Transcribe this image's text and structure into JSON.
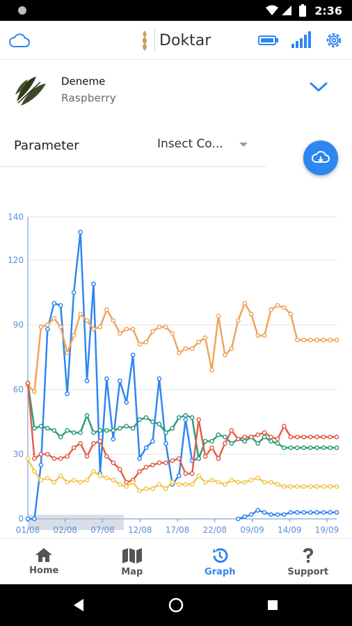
{
  "status_bar": {
    "time": "2:36"
  },
  "app": {
    "brand": "Doktar"
  },
  "field": {
    "name": "Deneme",
    "crop": "Raspberry"
  },
  "parameter": {
    "label": "Parameter",
    "selected": "Insect Co..."
  },
  "colors": {
    "accent": "#2e86f0",
    "blue": "#2e86f0",
    "orange": "#f0a35a",
    "green": "#2e9b7a",
    "red": "#e0604a",
    "yellow": "#f0c850"
  },
  "chart_data": {
    "type": "line",
    "x_ticks": [
      "01/08",
      "02/08",
      "07/08",
      "12/08",
      "17/08",
      "22/08",
      "09/09",
      "14/09",
      "19/09"
    ],
    "y_ticks": [
      "0",
      "30",
      "60",
      "90",
      "120",
      "140"
    ],
    "ylim": [
      0,
      140
    ],
    "grid": true,
    "series": [
      {
        "color": "blue",
        "values": [
          0,
          0,
          25,
          88,
          100,
          99,
          58,
          105,
          133,
          64,
          109,
          21,
          65,
          37,
          64,
          54,
          76,
          28,
          33,
          36,
          65,
          35,
          16,
          20,
          46,
          27,
          28,
          null,
          null,
          null,
          null,
          null,
          0,
          1,
          2,
          4,
          3,
          2,
          2,
          2,
          3,
          3,
          3,
          3,
          3,
          3,
          3,
          3
        ]
      },
      {
        "color": "orange",
        "values": [
          62,
          59,
          89,
          90,
          93,
          89,
          77,
          85,
          95,
          92,
          88,
          89,
          97,
          92,
          86,
          88,
          88,
          81,
          82,
          87,
          89,
          89,
          86,
          77,
          79,
          79,
          82,
          84,
          69,
          94,
          76,
          79,
          92,
          100,
          95,
          85,
          85,
          97,
          99,
          98,
          95,
          83,
          83,
          83,
          83,
          83,
          83,
          83
        ]
      },
      {
        "color": "green",
        "values": [
          63,
          42,
          43,
          42,
          41,
          38,
          41,
          40,
          40,
          48,
          40,
          41,
          41,
          41,
          42,
          43,
          42,
          46,
          47,
          45,
          44,
          40,
          42,
          47,
          48,
          47,
          28,
          36,
          36,
          39,
          38,
          35,
          37,
          36,
          38,
          35,
          38,
          36,
          35,
          33,
          33,
          33,
          33,
          33,
          33,
          33,
          33,
          33
        ]
      },
      {
        "color": "red",
        "values": [
          63,
          28,
          30,
          30,
          28,
          28,
          29,
          33,
          35,
          29,
          35,
          36,
          29,
          26,
          23,
          17,
          18,
          22,
          24,
          25,
          26,
          26,
          27,
          28,
          21,
          21,
          46,
          29,
          33,
          28,
          35,
          41,
          37,
          38,
          38,
          39,
          40,
          38,
          37,
          43,
          38,
          38,
          38,
          38,
          38,
          38,
          38,
          38
        ]
      },
      {
        "color": "yellow",
        "values": [
          28,
          22,
          18,
          19,
          17,
          20,
          17,
          18,
          17,
          18,
          22,
          20,
          19,
          18,
          16,
          15,
          17,
          13,
          14,
          14,
          16,
          14,
          17,
          16,
          16,
          16,
          20,
          17,
          18,
          17,
          16,
          18,
          17,
          17,
          18,
          19,
          17,
          17,
          16,
          15,
          15,
          15,
          15,
          15,
          15,
          15,
          15,
          15
        ]
      }
    ]
  },
  "nav": {
    "items": [
      {
        "label": "Home",
        "icon": "home-icon"
      },
      {
        "label": "Map",
        "icon": "map-icon"
      },
      {
        "label": "Graph",
        "icon": "graph-icon"
      },
      {
        "label": "Support",
        "icon": "support-icon"
      }
    ]
  }
}
